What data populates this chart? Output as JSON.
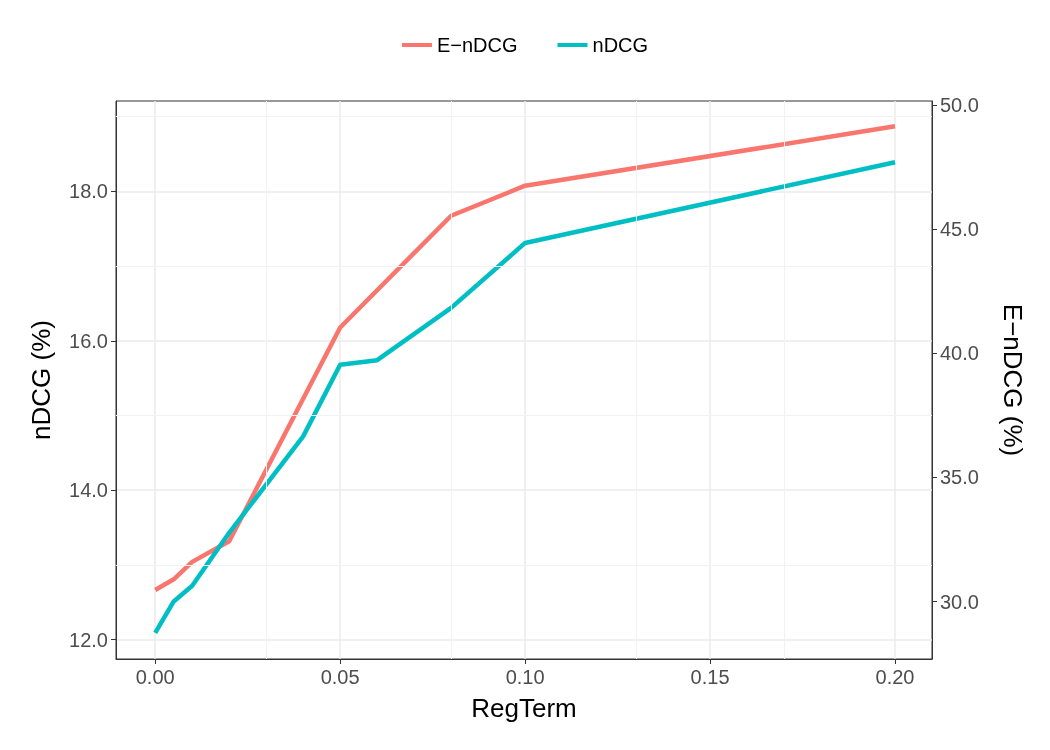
{
  "chart_data": {
    "type": "line",
    "xlabel": "RegTerm",
    "ylabel": "nDCG (%)",
    "y2label": "E−nDCG (%)",
    "xlim": [
      -0.0106,
      0.21
    ],
    "xticks": [
      {
        "value": 0,
        "label": "0.00"
      },
      {
        "value": 0.05,
        "label": "0.05"
      },
      {
        "value": 0.1,
        "label": "0.10"
      },
      {
        "value": 0.15,
        "label": "0.15"
      },
      {
        "value": 0.2,
        "label": "0.20"
      }
    ],
    "ylim": [
      11.74,
      19.21
    ],
    "yticks": [
      {
        "value": 12,
        "label": "12.0"
      },
      {
        "value": 14,
        "label": "14.0"
      },
      {
        "value": 16,
        "label": "16.0"
      },
      {
        "value": 18,
        "label": "18.0"
      }
    ],
    "y2lim": [
      27.69,
      50.16
    ],
    "y2ticks": [
      {
        "value": 30,
        "label": "30.0"
      },
      {
        "value": 35,
        "label": "35.0"
      },
      {
        "value": 40,
        "label": "40.0"
      },
      {
        "value": 45,
        "label": "45.0"
      },
      {
        "value": 50,
        "label": "50.0"
      }
    ],
    "series": [
      {
        "name": "E−nDCG",
        "color": "#f8766d",
        "axis": "y2",
        "x": [
          0,
          0.005,
          0.01,
          0.02,
          0.05,
          0.08,
          0.1,
          0.2
        ],
        "values": [
          30.47,
          30.9,
          31.6,
          32.43,
          41.04,
          45.54,
          46.75,
          49.14
        ]
      },
      {
        "name": "nDCG",
        "color": "#00bfc4",
        "x": [
          0,
          0.005,
          0.01,
          0.02,
          0.04,
          0.05,
          0.06,
          0.08,
          0.1,
          0.2
        ],
        "values": [
          12.09,
          12.51,
          12.72,
          13.43,
          14.72,
          15.68,
          15.74,
          16.44,
          17.31,
          18.39
        ]
      }
    ],
    "grid": true,
    "legend": "top",
    "line_style": "solid",
    "marker": "none"
  }
}
